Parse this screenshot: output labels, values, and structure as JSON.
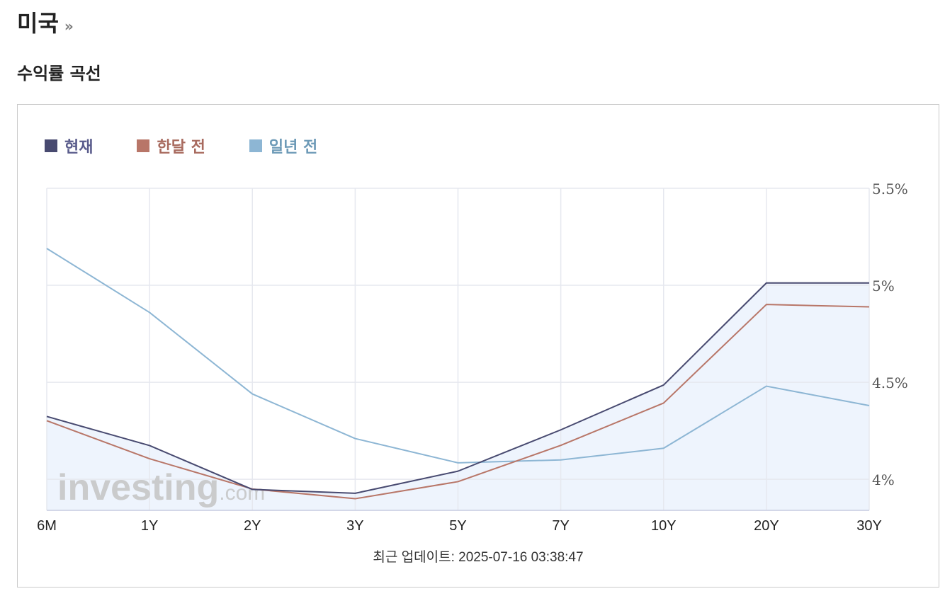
{
  "header": {
    "title": "미국",
    "title_arrow": "»",
    "subtitle": "수익률 곡선"
  },
  "legend": [
    {
      "label": "현재",
      "swatch_color": "#484a70",
      "text_color": "#5a5c8c"
    },
    {
      "label": "한달 전",
      "swatch_color": "#b87668",
      "text_color": "#a86a5e"
    },
    {
      "label": "일년 전",
      "swatch_color": "#8db6d4",
      "text_color": "#6d9ab7"
    }
  ],
  "watermark": {
    "brand": "investing",
    "suffix": ".com"
  },
  "update_text": "최근 업데이트: 2025-07-16 03:38:47",
  "chart_data": {
    "type": "line",
    "categories": [
      "6M",
      "1Y",
      "2Y",
      "3Y",
      "5Y",
      "7Y",
      "10Y",
      "20Y",
      "30Y"
    ],
    "series": [
      {
        "name": "현재",
        "color": "#484a70",
        "fill": "#eef4fd",
        "values": [
          4.324,
          4.174,
          3.948,
          3.928,
          4.042,
          4.255,
          4.486,
          5.012,
          5.012
        ]
      },
      {
        "name": "한달 전",
        "color": "#b87668",
        "values": [
          4.302,
          4.106,
          3.95,
          3.9,
          3.988,
          4.175,
          4.393,
          4.901,
          4.889
        ]
      },
      {
        "name": "일년 전",
        "color": "#8db6d4",
        "values": [
          5.19,
          4.86,
          4.44,
          4.21,
          4.085,
          4.1,
          4.16,
          4.48,
          4.38
        ]
      }
    ],
    "y_ticks": [
      "5.5%",
      "5%",
      "4.5%",
      "4%"
    ],
    "ylim": [
      3.84,
      5.5
    ],
    "y_axis_position": "right",
    "grid": true
  }
}
